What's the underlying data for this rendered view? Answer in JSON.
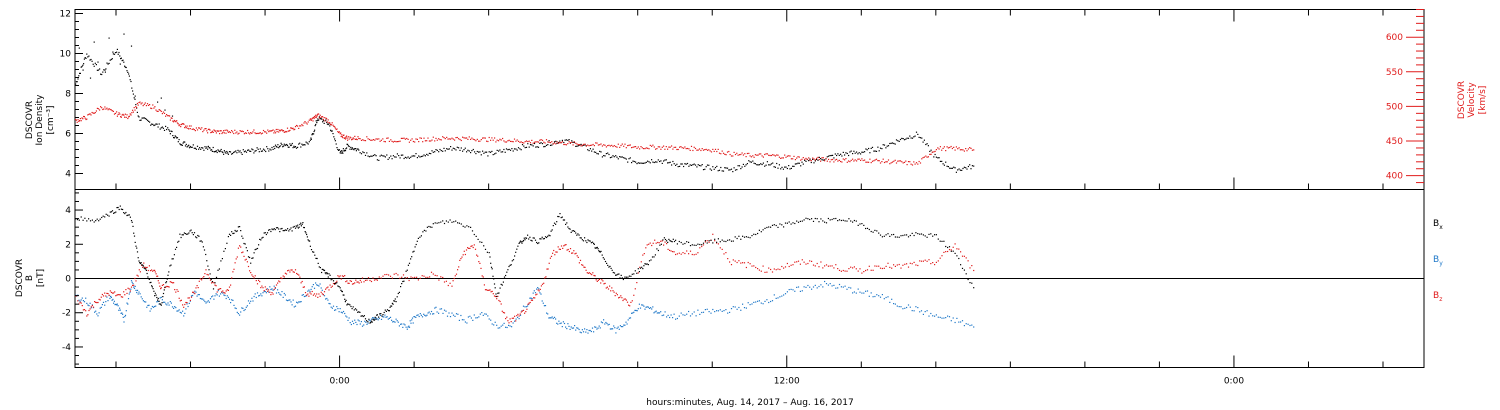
{
  "footer": {
    "xlabel": "hours:minutes, Aug. 14, 2017 – Aug. 16, 2017"
  },
  "colors": {
    "black": "#000000",
    "red": "#e01b1b",
    "blue": "#1f78c8"
  },
  "chart_data": [
    {
      "type": "scatter",
      "panel": "plasma",
      "grid": false,
      "x_ticks": [
        "0:00",
        "12:00",
        "0:00"
      ],
      "x_tick_hours": [
        0,
        12,
        24
      ],
      "xlim_hours": [
        -7.1,
        29.1
      ],
      "left_axis": {
        "label_lines": [
          "DSCOVR",
          "Ion Density",
          "[cm⁻³]"
        ],
        "ylim": [
          3.2,
          12.2
        ],
        "ticks": [
          4,
          6,
          8,
          10,
          12
        ]
      },
      "right_axis": {
        "label_lines": [
          "DSCOVR",
          "Velocity",
          "[km/s]"
        ],
        "ylim": [
          380,
          640
        ],
        "ticks": [
          400,
          450,
          500,
          550,
          600
        ],
        "color": "#e01b1b"
      },
      "series": [
        {
          "name": "",
          "axis": "left",
          "color": "#000000",
          "x_hours": [
            -7.1,
            -6.8,
            -6.4,
            -6.0,
            -5.7,
            -5.4,
            -5.0,
            -4.6,
            -4.3,
            -4.0,
            -3.6,
            -3.3,
            -3.0,
            -2.6,
            -2.2,
            -1.8,
            -1.5,
            -1.2,
            -0.8,
            -0.6,
            -0.3,
            0.0,
            0.2,
            0.5,
            1.0,
            1.5,
            2.0,
            2.5,
            3.0,
            3.5,
            4.0,
            4.5,
            5.0,
            5.5,
            6.0,
            6.5,
            7.0,
            7.5,
            8.0,
            8.5,
            9.0,
            9.5,
            10.0,
            10.5,
            11.0,
            11.5,
            12.0,
            12.5,
            13.0,
            13.5,
            14.0,
            14.5,
            15.0,
            15.5,
            16.0,
            16.5,
            17.0
          ],
          "values": [
            8.5,
            10.0,
            9.0,
            10.2,
            9.2,
            6.8,
            6.5,
            6.2,
            5.6,
            5.4,
            5.3,
            5.2,
            5.0,
            5.1,
            5.2,
            5.3,
            5.5,
            5.4,
            5.6,
            6.8,
            6.5,
            5.0,
            5.4,
            5.2,
            4.8,
            4.9,
            4.9,
            5.1,
            5.3,
            5.2,
            5.0,
            5.2,
            5.4,
            5.5,
            5.7,
            5.4,
            5.0,
            4.8,
            4.6,
            4.7,
            4.5,
            4.4,
            4.3,
            4.2,
            4.6,
            4.5,
            4.3,
            4.6,
            4.8,
            5.0,
            5.1,
            5.3,
            5.7,
            6.0,
            4.8,
            4.2,
            4.4
          ]
        },
        {
          "name": "",
          "axis": "right",
          "color": "#e01b1b",
          "x_hours": [
            -7.1,
            -6.8,
            -6.4,
            -6.0,
            -5.7,
            -5.4,
            -5.0,
            -4.6,
            -4.3,
            -4.0,
            -3.6,
            -3.3,
            -3.0,
            -2.6,
            -2.2,
            -1.8,
            -1.5,
            -1.2,
            -0.8,
            -0.6,
            -0.3,
            0.0,
            0.2,
            0.5,
            1.0,
            1.5,
            2.0,
            2.5,
            3.0,
            3.5,
            4.0,
            4.5,
            5.0,
            5.5,
            6.0,
            6.5,
            7.0,
            7.5,
            8.0,
            8.5,
            9.0,
            9.5,
            10.0,
            10.5,
            11.0,
            11.5,
            12.0,
            12.5,
            13.0,
            13.5,
            14.0,
            14.5,
            15.0,
            15.5,
            16.0,
            16.5,
            17.0
          ],
          "values": [
            480,
            485,
            500,
            490,
            486,
            505,
            500,
            485,
            475,
            470,
            466,
            464,
            464,
            464,
            464,
            464,
            466,
            470,
            480,
            488,
            480,
            460,
            455,
            455,
            453,
            452,
            452,
            454,
            455,
            454,
            453,
            452,
            450,
            450,
            448,
            446,
            445,
            444,
            442,
            442,
            441,
            440,
            438,
            432,
            430,
            430,
            428,
            425,
            424,
            423,
            423,
            422,
            420,
            418,
            440,
            440,
            438
          ]
        },
        {
          "name": "",
          "axis": "left",
          "color": "#000000",
          "x_hours": [
            -7.0,
            -6.9,
            -6.7,
            -6.6,
            -6.5,
            -6.3,
            -6.2,
            -6.1,
            -5.9,
            -5.8,
            -5.6,
            -5.5,
            -4.9,
            -4.8,
            -4.7,
            -4.5
          ],
          "values": [
            10.3,
            9.2,
            8.8,
            10.6,
            9.6,
            9.1,
            10.8,
            10.1,
            9.5,
            11.0,
            10.4,
            7.9,
            7.6,
            7.8,
            7.2,
            6.9
          ]
        }
      ]
    },
    {
      "type": "scatter",
      "panel": "magnetic field",
      "grid": false,
      "x_ticks": [
        "0:00",
        "12:00",
        "0:00"
      ],
      "x_tick_hours": [
        0,
        12,
        24
      ],
      "xlim_hours": [
        -7.1,
        29.1
      ],
      "left_axis": {
        "label_lines": [
          "DSCOVR",
          "B",
          "[nT]"
        ],
        "ylim": [
          -5.2,
          5.2
        ],
        "ticks": [
          -4,
          -2,
          0,
          2,
          4
        ]
      },
      "zero_line": true,
      "series": [
        {
          "name": "Bx",
          "color": "#000000",
          "x_hours": [
            -7.1,
            -6.6,
            -6.2,
            -5.9,
            -5.6,
            -5.4,
            -5.2,
            -5.0,
            -4.8,
            -4.6,
            -4.3,
            -4.0,
            -3.7,
            -3.4,
            -3.0,
            -2.7,
            -2.4,
            -2.1,
            -1.8,
            -1.5,
            -1.2,
            -1.0,
            -0.8,
            -0.5,
            -0.3,
            0.0,
            0.2,
            0.5,
            0.8,
            1.0,
            1.3,
            1.5,
            1.8,
            2.1,
            2.5,
            3.0,
            3.5,
            4.0,
            4.2,
            4.5,
            4.8,
            5.0,
            5.3,
            5.6,
            5.9,
            6.2,
            6.5,
            6.8,
            7.0,
            7.3,
            7.6,
            8.0,
            8.3,
            8.7,
            9.0,
            9.5,
            10.0,
            10.5,
            11.0,
            11.5,
            12.0,
            12.5,
            13.0,
            13.5,
            14.0,
            14.5,
            15.0,
            15.5,
            16.0,
            16.5,
            17.0
          ],
          "values": [
            3.6,
            3.4,
            3.8,
            4.2,
            3.5,
            1.0,
            0.5,
            -0.8,
            -1.5,
            0.5,
            2.5,
            2.8,
            2.2,
            -0.5,
            2.5,
            3.0,
            1.0,
            2.5,
            3.0,
            2.8,
            3.0,
            3.2,
            2.0,
            0.5,
            0.2,
            -0.5,
            -1.5,
            -2.0,
            -2.5,
            -2.2,
            -1.8,
            -1.2,
            0.5,
            2.5,
            3.2,
            3.4,
            3.0,
            1.5,
            -1.0,
            0.5,
            2.0,
            2.5,
            2.2,
            2.5,
            3.8,
            2.8,
            2.4,
            2.0,
            1.5,
            0.5,
            0.0,
            0.5,
            1.0,
            2.3,
            2.2,
            2.0,
            2.2,
            2.3,
            2.5,
            3.0,
            3.2,
            3.5,
            3.4,
            3.5,
            3.2,
            2.6,
            2.5,
            2.6,
            2.5,
            1.5,
            -0.5
          ]
        },
        {
          "name": "By",
          "color": "#1f78c8",
          "x_hours": [
            -7.1,
            -6.8,
            -6.5,
            -6.2,
            -6.0,
            -5.8,
            -5.6,
            -5.4,
            -5.1,
            -4.8,
            -4.5,
            -4.2,
            -3.9,
            -3.6,
            -3.3,
            -3.0,
            -2.7,
            -2.4,
            -2.1,
            -1.8,
            -1.5,
            -1.2,
            -0.9,
            -0.6,
            -0.3,
            0.0,
            0.3,
            0.6,
            0.9,
            1.2,
            1.5,
            1.8,
            2.0,
            2.3,
            2.6,
            3.0,
            3.4,
            3.8,
            4.2,
            4.6,
            5.0,
            5.3,
            5.6,
            5.9,
            6.2,
            6.5,
            6.8,
            7.1,
            7.4,
            7.7,
            8.0,
            8.3,
            8.6,
            9.0,
            9.5,
            10.0,
            10.5,
            11.0,
            11.5,
            12.0,
            12.5,
            13.0,
            13.5,
            14.0,
            14.5,
            15.0,
            15.5,
            16.0,
            16.5,
            17.0
          ],
          "values": [
            -1.0,
            -1.3,
            -2.0,
            -1.0,
            -1.5,
            -2.4,
            -0.2,
            -0.8,
            -1.8,
            -1.2,
            -1.5,
            -2.0,
            -0.7,
            -1.5,
            -0.8,
            -1.0,
            -2.0,
            -1.2,
            -0.8,
            -0.5,
            -1.0,
            -1.5,
            -0.8,
            -0.2,
            -1.5,
            -1.8,
            -2.5,
            -2.6,
            -2.4,
            -2.2,
            -2.5,
            -2.8,
            -2.3,
            -2.0,
            -1.8,
            -2.1,
            -2.4,
            -2.0,
            -2.7,
            -2.8,
            -1.5,
            -0.5,
            -2.2,
            -2.6,
            -2.8,
            -3.1,
            -3.0,
            -2.5,
            -3.0,
            -2.5,
            -1.6,
            -1.7,
            -2.0,
            -2.2,
            -2.0,
            -1.9,
            -1.8,
            -1.5,
            -1.2,
            -0.8,
            -0.5,
            -0.3,
            -0.5,
            -0.8,
            -1.0,
            -1.5,
            -1.8,
            -2.2,
            -2.4,
            -2.8
          ]
        },
        {
          "name": "Bz",
          "color": "#e01b1b",
          "x_hours": [
            -7.1,
            -6.8,
            -6.5,
            -6.2,
            -5.9,
            -5.6,
            -5.3,
            -5.0,
            -4.8,
            -4.5,
            -4.2,
            -3.9,
            -3.6,
            -3.3,
            -3.0,
            -2.7,
            -2.4,
            -2.1,
            -1.8,
            -1.5,
            -1.2,
            -0.9,
            -0.6,
            -0.3,
            0.0,
            0.3,
            0.6,
            1.0,
            1.5,
            2.0,
            2.5,
            3.0,
            3.3,
            3.6,
            3.9,
            4.2,
            4.5,
            4.8,
            5.1,
            5.4,
            5.7,
            6.0,
            6.3,
            6.6,
            6.9,
            7.2,
            7.5,
            7.8,
            8.2,
            8.6,
            9.0,
            9.5,
            10.0,
            10.5,
            11.0,
            11.5,
            12.0,
            12.5,
            13.0,
            13.5,
            14.0,
            14.5,
            15.0,
            15.5,
            16.0,
            16.5,
            17.0
          ],
          "values": [
            -1.0,
            -2.0,
            -1.2,
            -0.8,
            -1.0,
            -0.5,
            0.8,
            0.5,
            -0.5,
            -0.2,
            -1.5,
            -0.8,
            0.5,
            -0.6,
            -0.8,
            2.0,
            0.5,
            -0.5,
            -0.8,
            0.3,
            0.5,
            -0.8,
            -1.0,
            -0.5,
            0.2,
            -0.2,
            -0.1,
            0.1,
            0.2,
            0.0,
            0.3,
            -0.4,
            1.5,
            2.0,
            -0.5,
            -1.0,
            -2.5,
            -2.2,
            -1.5,
            -0.5,
            1.5,
            2.0,
            1.5,
            0.5,
            0.0,
            -0.5,
            -1.0,
            -1.5,
            2.0,
            2.2,
            1.5,
            1.5,
            2.5,
            1.0,
            0.8,
            0.5,
            0.8,
            1.0,
            0.8,
            0.6,
            0.5,
            0.8,
            0.7,
            0.9,
            1.0,
            2.0,
            0.5
          ]
        }
      ],
      "legend": {
        "placement": "right",
        "entries": [
          {
            "label": "B",
            "sub": "x",
            "color": "#000000"
          },
          {
            "label": "B",
            "sub": "y",
            "color": "#1f78c8"
          },
          {
            "label": "B",
            "sub": "z",
            "color": "#e01b1b"
          }
        ]
      }
    }
  ]
}
